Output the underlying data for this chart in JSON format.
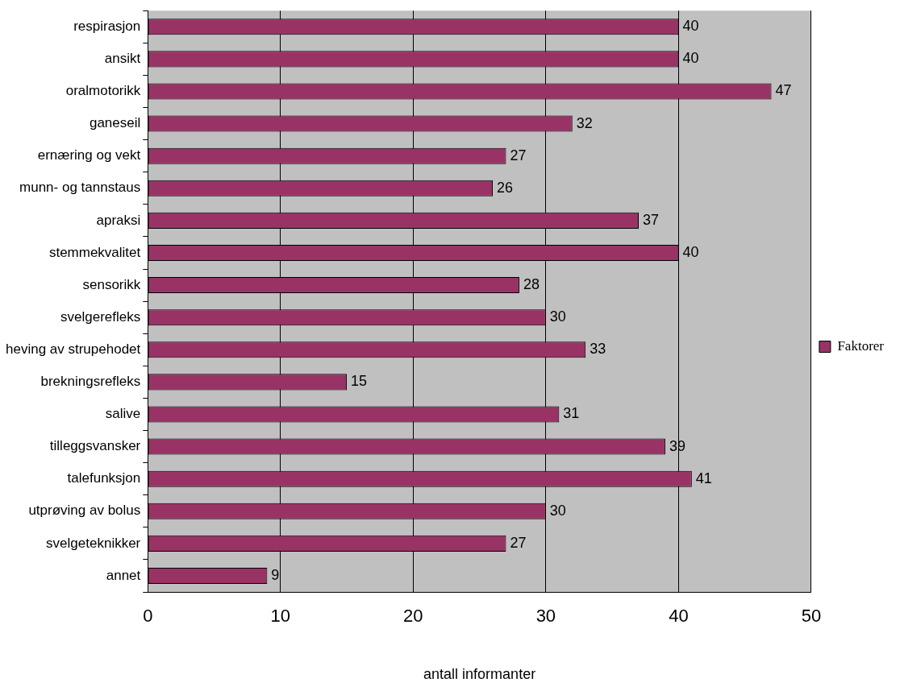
{
  "chart_data": {
    "type": "bar",
    "orientation": "horizontal",
    "xlabel": "antall informanter",
    "categories": [
      "respirasjon",
      "ansikt",
      "oralmotorikk",
      "ganeseil",
      "ernæring og vekt",
      "munn- og tannstaus",
      "apraksi",
      "stemmekvalitet",
      "sensorikk",
      "svelgerefleks",
      "heving av strupehodet",
      "brekningsrefleks",
      "salive",
      "tilleggsvansker",
      "talefunksjon",
      "utprøving av bolus",
      "svelgeteknikker",
      "annet"
    ],
    "series": [
      {
        "name": "Faktorer",
        "color": "#993366",
        "values": [
          40,
          40,
          47,
          32,
          27,
          26,
          37,
          40,
          28,
          30,
          33,
          15,
          31,
          39,
          41,
          30,
          27,
          9
        ]
      }
    ],
    "xlim": [
      0,
      50
    ],
    "xticks": [
      0,
      10,
      20,
      30,
      40,
      50
    ],
    "grid": "x",
    "legend": "right",
    "data_labels": true
  }
}
